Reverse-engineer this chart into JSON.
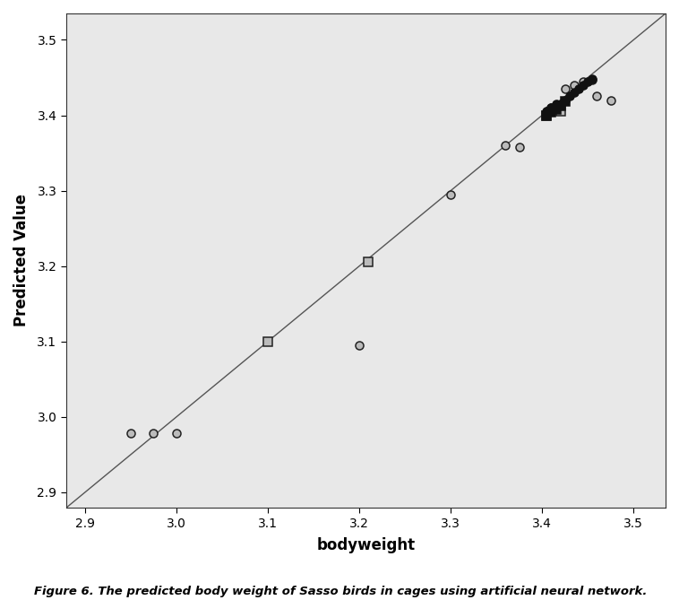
{
  "title": "",
  "xlabel": "bodyweight",
  "ylabel": "Predicted Value",
  "xlim": [
    2.88,
    3.535
  ],
  "ylim": [
    2.88,
    3.535
  ],
  "xticks": [
    2.9,
    3.0,
    3.1,
    3.2,
    3.3,
    3.4,
    3.5
  ],
  "yticks": [
    2.9,
    3.0,
    3.1,
    3.2,
    3.3,
    3.4,
    3.5
  ],
  "background_color": "#e8e8e8",
  "line_color": "#555555",
  "caption": "Figure 6. The predicted body weight of Sasso birds in cages using artificial neural network.",
  "points_circle_open_gray": [
    [
      2.95,
      2.978
    ],
    [
      2.975,
      2.978
    ],
    [
      3.0,
      2.978
    ],
    [
      3.2,
      3.095
    ],
    [
      3.3,
      3.295
    ],
    [
      3.36,
      3.36
    ],
    [
      3.375,
      3.358
    ],
    [
      3.41,
      3.41
    ],
    [
      3.425,
      3.435
    ],
    [
      3.435,
      3.44
    ],
    [
      3.445,
      3.445
    ],
    [
      3.455,
      3.447
    ],
    [
      3.46,
      3.425
    ],
    [
      3.475,
      3.42
    ]
  ],
  "points_square_open_gray": [
    [
      3.1,
      3.1
    ],
    [
      3.21,
      3.205
    ],
    [
      3.405,
      3.4
    ],
    [
      3.42,
      3.405
    ]
  ],
  "points_circle_filled": [
    [
      3.405,
      3.405
    ],
    [
      3.41,
      3.41
    ],
    [
      3.415,
      3.415
    ],
    [
      3.42,
      3.415
    ],
    [
      3.425,
      3.42
    ],
    [
      3.43,
      3.425
    ],
    [
      3.435,
      3.43
    ],
    [
      3.44,
      3.435
    ],
    [
      3.445,
      3.44
    ],
    [
      3.45,
      3.445
    ],
    [
      3.455,
      3.448
    ]
  ],
  "points_square_filled": [
    [
      3.405,
      3.4
    ],
    [
      3.41,
      3.404
    ],
    [
      3.415,
      3.408
    ],
    [
      3.42,
      3.413
    ],
    [
      3.425,
      3.418
    ]
  ]
}
